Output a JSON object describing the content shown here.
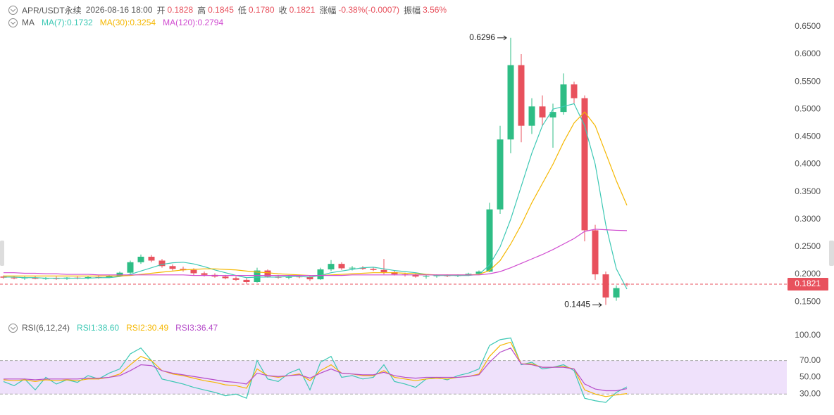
{
  "header": {
    "symbol": "APR/USDT永续",
    "time": "2026-08-16 18:00",
    "fields": [
      {
        "label": "开",
        "value": "0.1828"
      },
      {
        "label": "高",
        "value": "0.1845"
      },
      {
        "label": "低",
        "value": "0.1780"
      },
      {
        "label": "收",
        "value": "0.1821"
      },
      {
        "label": "涨幅",
        "value": "-0.38%(-0.0007)"
      },
      {
        "label": "振幅",
        "value": "3.56%"
      }
    ]
  },
  "chart_data": [
    {
      "type": "candlestick",
      "legend_title": "MA",
      "up_color": "#2ebd85",
      "down_color": "#e8515d",
      "ohlc": [
        [
          0.196,
          0.198,
          0.192,
          0.194
        ],
        [
          0.194,
          0.197,
          0.191,
          0.193
        ],
        [
          0.193,
          0.196,
          0.19,
          0.194
        ],
        [
          0.194,
          0.197,
          0.191,
          0.192
        ],
        [
          0.192,
          0.195,
          0.19,
          0.193
        ],
        [
          0.193,
          0.196,
          0.19,
          0.192
        ],
        [
          0.192,
          0.195,
          0.19,
          0.194
        ],
        [
          0.194,
          0.196,
          0.191,
          0.193
        ],
        [
          0.193,
          0.197,
          0.191,
          0.195
        ],
        [
          0.195,
          0.198,
          0.192,
          0.194
        ],
        [
          0.194,
          0.199,
          0.193,
          0.197
        ],
        [
          0.197,
          0.205,
          0.196,
          0.203
        ],
        [
          0.203,
          0.225,
          0.201,
          0.222
        ],
        [
          0.222,
          0.236,
          0.219,
          0.232
        ],
        [
          0.232,
          0.235,
          0.222,
          0.225
        ],
        [
          0.225,
          0.228,
          0.212,
          0.215
        ],
        [
          0.215,
          0.218,
          0.207,
          0.21
        ],
        [
          0.21,
          0.214,
          0.205,
          0.208
        ],
        [
          0.208,
          0.211,
          0.198,
          0.202
        ],
        [
          0.202,
          0.205,
          0.196,
          0.199
        ],
        [
          0.199,
          0.202,
          0.194,
          0.196
        ],
        [
          0.196,
          0.199,
          0.191,
          0.193
        ],
        [
          0.193,
          0.196,
          0.188,
          0.19
        ],
        [
          0.19,
          0.193,
          0.183,
          0.186
        ],
        [
          0.186,
          0.212,
          0.185,
          0.207
        ],
        [
          0.207,
          0.209,
          0.194,
          0.196
        ],
        [
          0.196,
          0.199,
          0.192,
          0.194
        ],
        [
          0.194,
          0.198,
          0.191,
          0.196
        ],
        [
          0.196,
          0.199,
          0.193,
          0.195
        ],
        [
          0.195,
          0.197,
          0.188,
          0.191
        ],
        [
          0.191,
          0.212,
          0.19,
          0.209
        ],
        [
          0.209,
          0.226,
          0.206,
          0.219
        ],
        [
          0.219,
          0.222,
          0.208,
          0.211
        ],
        [
          0.211,
          0.215,
          0.207,
          0.212
        ],
        [
          0.212,
          0.215,
          0.208,
          0.21
        ],
        [
          0.21,
          0.213,
          0.206,
          0.208
        ],
        [
          0.208,
          0.228,
          0.2,
          0.204
        ],
        [
          0.204,
          0.207,
          0.198,
          0.2
        ],
        [
          0.2,
          0.203,
          0.196,
          0.199
        ],
        [
          0.199,
          0.202,
          0.194,
          0.196
        ],
        [
          0.196,
          0.199,
          0.192,
          0.197
        ],
        [
          0.197,
          0.2,
          0.194,
          0.198
        ],
        [
          0.198,
          0.2,
          0.195,
          0.197
        ],
        [
          0.197,
          0.2,
          0.195,
          0.199
        ],
        [
          0.199,
          0.203,
          0.197,
          0.201
        ],
        [
          0.201,
          0.207,
          0.199,
          0.205
        ],
        [
          0.205,
          0.33,
          0.204,
          0.318
        ],
        [
          0.318,
          0.47,
          0.31,
          0.445
        ],
        [
          0.445,
          0.6296,
          0.42,
          0.58
        ],
        [
          0.58,
          0.6,
          0.44,
          0.47
        ],
        [
          0.47,
          0.52,
          0.455,
          0.505
        ],
        [
          0.505,
          0.525,
          0.47,
          0.485
        ],
        [
          0.485,
          0.51,
          0.43,
          0.495
        ],
        [
          0.495,
          0.565,
          0.49,
          0.545
        ],
        [
          0.545,
          0.55,
          0.51,
          0.52
        ],
        [
          0.52,
          0.525,
          0.26,
          0.28
        ],
        [
          0.28,
          0.29,
          0.19,
          0.2
        ],
        [
          0.2,
          0.205,
          0.1445,
          0.158
        ],
        [
          0.158,
          0.18,
          0.152,
          0.175
        ],
        [
          0.1828,
          0.1845,
          0.178,
          0.1821
        ]
      ],
      "series": [
        {
          "name": "MA(7):0.1732",
          "color": "#3cc8b4",
          "values": [
            0.195,
            0.195,
            0.194,
            0.194,
            0.193,
            0.193,
            0.193,
            0.193,
            0.193,
            0.194,
            0.194,
            0.196,
            0.2,
            0.206,
            0.212,
            0.218,
            0.221,
            0.222,
            0.219,
            0.214,
            0.208,
            0.203,
            0.198,
            0.194,
            0.195,
            0.195,
            0.195,
            0.196,
            0.196,
            0.195,
            0.198,
            0.203,
            0.206,
            0.209,
            0.212,
            0.213,
            0.21,
            0.207,
            0.205,
            0.203,
            0.2,
            0.198,
            0.198,
            0.198,
            0.198,
            0.2,
            0.217,
            0.25,
            0.3,
            0.36,
            0.42,
            0.47,
            0.5,
            0.505,
            0.51,
            0.47,
            0.4,
            0.29,
            0.21,
            0.1732
          ]
        },
        {
          "name": "MA(30):0.3254",
          "color": "#f5b700",
          "values": [
            0.197,
            0.197,
            0.197,
            0.197,
            0.197,
            0.197,
            0.197,
            0.197,
            0.197,
            0.197,
            0.197,
            0.197,
            0.198,
            0.2,
            0.202,
            0.204,
            0.206,
            0.208,
            0.209,
            0.21,
            0.21,
            0.209,
            0.208,
            0.206,
            0.204,
            0.203,
            0.201,
            0.2,
            0.199,
            0.198,
            0.198,
            0.199,
            0.2,
            0.201,
            0.202,
            0.203,
            0.203,
            0.203,
            0.202,
            0.201,
            0.2,
            0.199,
            0.199,
            0.199,
            0.199,
            0.2,
            0.207,
            0.225,
            0.255,
            0.29,
            0.33,
            0.365,
            0.4,
            0.44,
            0.475,
            0.495,
            0.47,
            0.42,
            0.37,
            0.3254
          ]
        },
        {
          "name": "MA(120):0.2794",
          "color": "#d04bd0",
          "values": [
            0.203,
            0.203,
            0.202,
            0.202,
            0.201,
            0.201,
            0.2,
            0.2,
            0.2,
            0.199,
            0.199,
            0.199,
            0.199,
            0.199,
            0.199,
            0.199,
            0.199,
            0.199,
            0.198,
            0.198,
            0.198,
            0.198,
            0.198,
            0.198,
            0.198,
            0.198,
            0.198,
            0.198,
            0.198,
            0.198,
            0.198,
            0.198,
            0.198,
            0.199,
            0.199,
            0.199,
            0.199,
            0.199,
            0.199,
            0.199,
            0.199,
            0.199,
            0.199,
            0.199,
            0.199,
            0.199,
            0.201,
            0.205,
            0.212,
            0.22,
            0.228,
            0.236,
            0.245,
            0.255,
            0.265,
            0.278,
            0.282,
            0.281,
            0.28,
            0.2794
          ]
        }
      ],
      "ylim": [
        0.14,
        0.66
      ],
      "yticks": [
        {
          "value": 0.15,
          "label": "0.1500"
        },
        {
          "value": 0.2,
          "label": "0.2000"
        },
        {
          "value": 0.25,
          "label": "0.2500"
        },
        {
          "value": 0.3,
          "label": "0.3000"
        },
        {
          "value": 0.35,
          "label": "0.3500"
        },
        {
          "value": 0.4,
          "label": "0.4000"
        },
        {
          "value": 0.45,
          "label": "0.4500"
        },
        {
          "value": 0.5,
          "label": "0.5000"
        },
        {
          "value": 0.55,
          "label": "0.5500"
        },
        {
          "value": 0.6,
          "label": "0.6000"
        },
        {
          "value": 0.65,
          "label": "0.6500"
        }
      ],
      "last_price": {
        "value": 0.1821,
        "label": "0.1821"
      },
      "annotations": [
        {
          "value": 0.6296,
          "label": "0.6296",
          "kind": "high"
        },
        {
          "value": 0.1445,
          "label": "0.1445",
          "kind": "low"
        }
      ]
    },
    {
      "type": "line",
      "legend_title": "RSI(6,12,24)",
      "series": [
        {
          "name": "RSI1:38.60",
          "color": "#3cc8b4",
          "values": [
            45,
            40,
            48,
            35,
            50,
            42,
            47,
            44,
            52,
            48,
            55,
            60,
            78,
            85,
            70,
            48,
            45,
            42,
            38,
            35,
            32,
            28,
            30,
            25,
            70,
            48,
            45,
            55,
            60,
            35,
            68,
            75,
            50,
            52,
            48,
            50,
            65,
            45,
            42,
            38,
            48,
            50,
            47,
            52,
            55,
            60,
            88,
            95,
            97,
            65,
            68,
            60,
            62,
            65,
            58,
            25,
            22,
            20,
            32,
            38.6
          ]
        },
        {
          "name": "RSI2:30.49",
          "color": "#f5b700",
          "values": [
            47,
            46,
            47,
            45,
            47,
            46,
            47,
            46,
            48,
            48,
            50,
            54,
            65,
            75,
            70,
            58,
            54,
            52,
            49,
            46,
            44,
            41,
            40,
            37,
            60,
            52,
            50,
            52,
            54,
            46,
            58,
            65,
            55,
            54,
            52,
            52,
            58,
            50,
            48,
            46,
            48,
            49,
            48,
            50,
            51,
            54,
            75,
            88,
            92,
            66,
            66,
            62,
            62,
            63,
            60,
            35,
            30,
            27,
            29,
            30.49
          ]
        },
        {
          "name": "RSI3:36.47",
          "color": "#b54cc9",
          "values": [
            48,
            48,
            48,
            47,
            48,
            48,
            48,
            48,
            49,
            49,
            50,
            52,
            58,
            65,
            64,
            58,
            55,
            53,
            51,
            49,
            47,
            45,
            44,
            42,
            55,
            52,
            51,
            52,
            53,
            49,
            55,
            60,
            55,
            54,
            53,
            53,
            56,
            52,
            50,
            49,
            50,
            50,
            50,
            50,
            51,
            53,
            68,
            80,
            85,
            66,
            65,
            62,
            62,
            62,
            60,
            42,
            36,
            34,
            34,
            36.47
          ]
        }
      ],
      "ylim": [
        5,
        110
      ],
      "yticks": [
        {
          "value": 30,
          "label": "30.00"
        },
        {
          "value": 50,
          "label": "50.00"
        },
        {
          "value": 70,
          "label": "70.00"
        },
        {
          "value": 100,
          "label": "100.00"
        }
      ],
      "band": [
        30,
        70
      ],
      "band_color": "#efe1fb"
    }
  ]
}
